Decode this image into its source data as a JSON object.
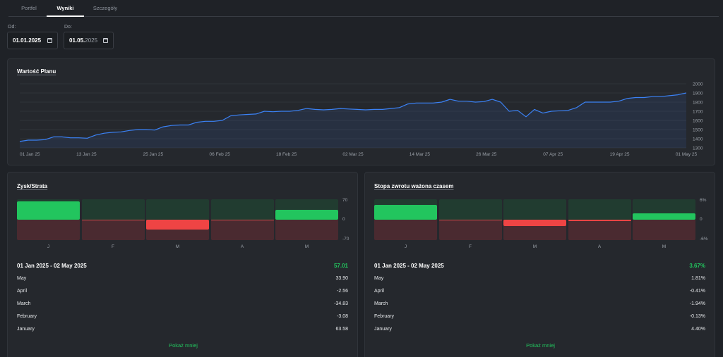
{
  "tabs": [
    {
      "label": "Portfel",
      "active": false
    },
    {
      "label": "Wyniki",
      "active": true
    },
    {
      "label": "Szczegóły",
      "active": false
    }
  ],
  "date_from": {
    "label": "Od:",
    "value_main": "01.01.2025",
    "value_dim": ""
  },
  "date_to": {
    "label": "Do:",
    "value_main": "01.05.",
    "value_dim": "2025"
  },
  "value_chart": {
    "title": "Wartość Planu",
    "chart_data": {
      "type": "area",
      "x_ticks": [
        "01 Jan 25",
        "13 Jan 25",
        "25 Jan 25",
        "06 Feb 25",
        "18 Feb 25",
        "02 Mar 25",
        "14 Mar 25",
        "26 Mar 25",
        "07 Apr 25",
        "19 Apr 25",
        "01 May 25"
      ],
      "y_ticks": [
        "2000",
        "1900",
        "1800",
        "1700",
        "1600",
        "1500",
        "1400",
        "1300"
      ],
      "ylim": [
        1300,
        2000
      ],
      "grid": true,
      "color": "#3b82f6",
      "values": [
        1370,
        1385,
        1385,
        1390,
        1420,
        1420,
        1410,
        1410,
        1405,
        1440,
        1460,
        1470,
        1475,
        1490,
        1500,
        1500,
        1495,
        1530,
        1545,
        1550,
        1550,
        1580,
        1590,
        1590,
        1600,
        1650,
        1660,
        1665,
        1670,
        1700,
        1695,
        1700,
        1700,
        1710,
        1730,
        1720,
        1715,
        1720,
        1730,
        1725,
        1720,
        1715,
        1720,
        1720,
        1730,
        1740,
        1780,
        1790,
        1790,
        1790,
        1800,
        1830,
        1810,
        1810,
        1800,
        1805,
        1830,
        1800,
        1700,
        1710,
        1640,
        1720,
        1680,
        1700,
        1705,
        1710,
        1740,
        1800,
        1800,
        1800,
        1800,
        1810,
        1840,
        1850,
        1850,
        1860,
        1860,
        1870,
        1880,
        1900
      ]
    }
  },
  "pl_card": {
    "title": "Zysk/Strata",
    "chart_data": {
      "type": "bar",
      "categories": [
        "J",
        "F",
        "M",
        "A",
        "M"
      ],
      "values": [
        63.58,
        -3.08,
        -34.83,
        -2.56,
        33.9
      ],
      "ylim": [
        -70,
        70
      ],
      "y_ticks": [
        "70",
        "0",
        "-70"
      ]
    },
    "range": "01 Jan 2025 - 02 May 2025",
    "total": "57.01",
    "rows": [
      {
        "label": "May",
        "value": "33.90"
      },
      {
        "label": "April",
        "value": "-2.56"
      },
      {
        "label": "March",
        "value": "-34.83"
      },
      {
        "label": "February",
        "value": "-3.08"
      },
      {
        "label": "January",
        "value": "63.58"
      }
    ],
    "toggle": "Pokaż mniej"
  },
  "twr_card": {
    "title": "Stopa zwrotu ważona czasem",
    "chart_data": {
      "type": "bar",
      "categories": [
        "J",
        "F",
        "M",
        "A",
        "M"
      ],
      "values": [
        4.4,
        -0.13,
        -1.94,
        -0.41,
        1.81
      ],
      "ylim": [
        -6,
        6
      ],
      "y_ticks": [
        "6%",
        "0",
        "-6%"
      ]
    },
    "range": "01 Jan 2025 - 02 May 2025",
    "total": "3.67%",
    "rows": [
      {
        "label": "May",
        "value": "1.81%"
      },
      {
        "label": "April",
        "value": "-0.41%"
      },
      {
        "label": "March",
        "value": "-1.94%"
      },
      {
        "label": "February",
        "value": "-0.13%"
      },
      {
        "label": "January",
        "value": "4.40%"
      }
    ],
    "toggle": "Pokaż mniej"
  },
  "colors": {
    "positive": "#22c55e",
    "negative": "#ef4444",
    "line": "#3b82f6"
  }
}
